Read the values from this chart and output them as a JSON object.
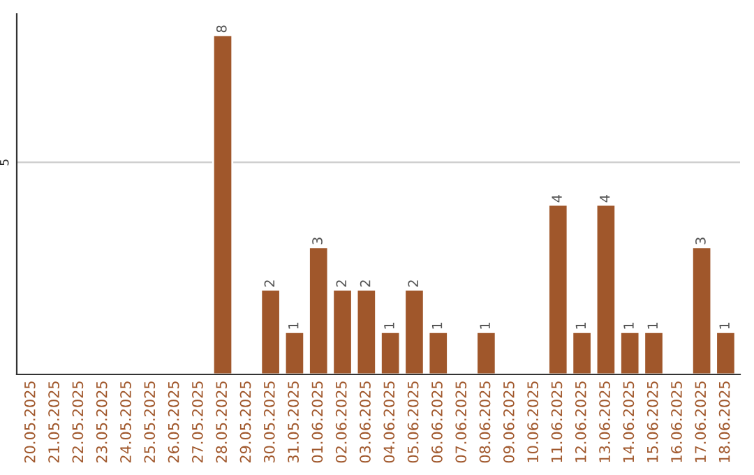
{
  "chart_data": {
    "type": "bar",
    "categories": [
      "20.05.2025",
      "21.05.2025",
      "22.05.2025",
      "23.05.2025",
      "24.05.2025",
      "25.05.2025",
      "26.05.2025",
      "27.05.2025",
      "28.05.2025",
      "29.05.2025",
      "30.05.2025",
      "31.05.2025",
      "01.06.2025",
      "02.06.2025",
      "03.06.2025",
      "04.06.2025",
      "05.06.2025",
      "06.06.2025",
      "07.06.2025",
      "08.06.2025",
      "09.06.2025",
      "10.06.2025",
      "11.06.2025",
      "12.06.2025",
      "13.06.2025",
      "14.06.2025",
      "15.06.2025",
      "16.06.2025",
      "17.06.2025",
      "18.06.2025"
    ],
    "series": [
      {
        "color": "#a0572b",
        "values": [
          0,
          0,
          0,
          0,
          0,
          0,
          0,
          0,
          8,
          0,
          2,
          1,
          3,
          2,
          2,
          1,
          2,
          1,
          0,
          1,
          0,
          0,
          4,
          1,
          4,
          1,
          1,
          0,
          3,
          1
        ]
      }
    ],
    "value_labels": [
      null,
      null,
      null,
      null,
      null,
      null,
      null,
      null,
      "8",
      null,
      "2",
      "1",
      "3",
      "2",
      "2",
      "1",
      "2",
      "1",
      null,
      "1",
      null,
      null,
      "4",
      "1",
      "4",
      "1",
      "1",
      null,
      "3",
      "1"
    ],
    "ylim": [
      0,
      8.5
    ],
    "yticks": [
      5
    ],
    "grid": "y"
  }
}
